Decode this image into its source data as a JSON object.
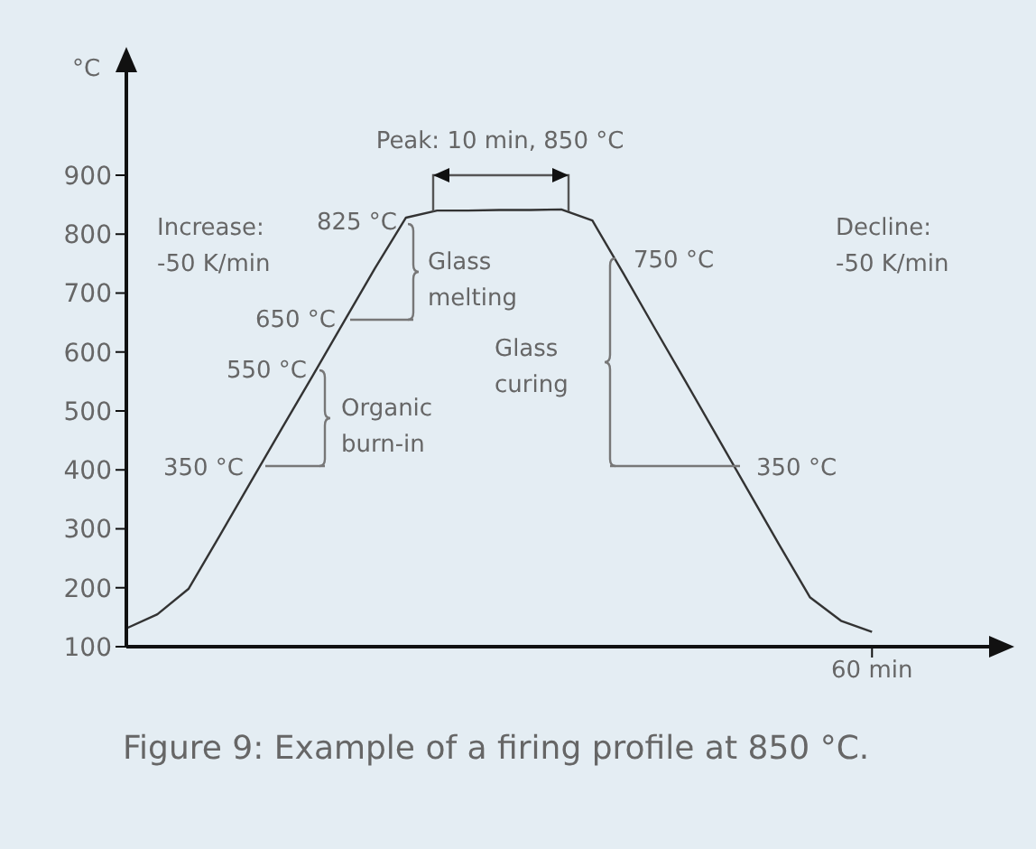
{
  "chart_data": {
    "type": "line",
    "ylabel": "°C",
    "categories": [
      null,
      null,
      null,
      null,
      null,
      null,
      null,
      null,
      null,
      null,
      null,
      null,
      null,
      null,
      null,
      null,
      null,
      null,
      null,
      null,
      null,
      null,
      null,
      null,
      "60 min",
      null,
      null,
      null,
      null
    ],
    "values": [
      131,
      155,
      198,
      288,
      379,
      470,
      560,
      651,
      742,
      828,
      840,
      840,
      841,
      841,
      842,
      823,
      733,
      641,
      550,
      458,
      366,
      274,
      184,
      144,
      125,
      null,
      null,
      null,
      null
    ],
    "color": "#333333",
    "ylim": [
      100,
      1090
    ],
    "yticks": [
      100,
      200,
      300,
      400,
      500,
      600,
      700,
      800,
      900
    ],
    "grid": false,
    "legend": false,
    "marker": "none",
    "line_style": "solid",
    "annotations": [
      "Peak: 10 min, 850 °C",
      "Increase:\n-50 K/min",
      "825 °C",
      "Glass\nmelting",
      "650 °C",
      "550 °C",
      "Organic\nburn-in",
      "350 °C",
      "Glass\ncuring",
      "750 °C",
      "350 °C",
      "Decline:\n-50 K/min",
      "Figure 9: Example of a firing profile at 850 °C."
    ]
  }
}
